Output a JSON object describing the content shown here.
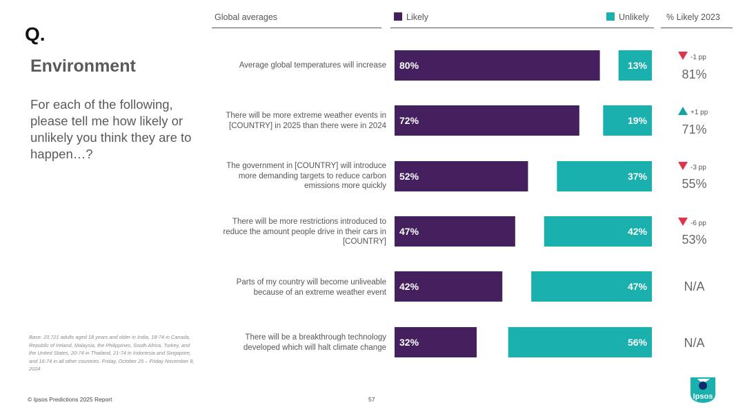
{
  "page": {
    "q_mark": "Q.",
    "title": "Environment",
    "question": "For each of the following, please tell me how likely or unlikely you think they are to happen…?",
    "base_note": "Base: 23,721 adults aged 18 years and older in India, 18-74 in Canada, Republic of Ireland, Malaysia, the Philippines, South Africa, Turkey, and the United States, 20-74 in Thailand, 21-74 in Indonesia and Singapore, and 16-74 in all other countries. Friday, October 25 – Friday November 8, 2024",
    "footer": "© Ipsos Predictions 2025 Report",
    "page_number": "57",
    "logo_text": "Ipsos"
  },
  "headers": {
    "global_averages": "Global averages",
    "likely": "Likely",
    "unlikely": "Unlikely",
    "pct_likely_2023": "% Likely 2023"
  },
  "colors": {
    "likely": "#45205f",
    "unlikely": "#19b0ad",
    "down": "#e0344a",
    "up": "#11a4a6"
  },
  "chart_data": {
    "type": "bar",
    "orientation": "horizontal-diverging",
    "title": "Global averages",
    "categories": [
      "Average global temperatures will increase",
      "There will be more extreme weather events in [COUNTRY] in 2025 than there were in 2024",
      "The government in [COUNTRY] will introduce more demanding targets to reduce carbon emissions more quickly",
      "There will be more restrictions introduced to reduce the amount people drive in their cars in [COUNTRY]",
      "Parts of my country will become unliveable because of an extreme weather event",
      "There will be a breakthrough technology developed which will halt climate change"
    ],
    "series": [
      {
        "name": "Likely",
        "values": [
          80,
          72,
          52,
          47,
          42,
          32
        ],
        "labels": [
          "80%",
          "72%",
          "52%",
          "47%",
          "42%",
          "32%"
        ]
      },
      {
        "name": "Unlikely",
        "values": [
          13,
          19,
          37,
          42,
          47,
          56
        ],
        "labels": [
          "13%",
          "19%",
          "37%",
          "42%",
          "47%",
          "56%"
        ]
      }
    ],
    "change_vs_2023": [
      {
        "direction": "down",
        "text": "-1 pp"
      },
      {
        "direction": "up",
        "text": "+1 pp"
      },
      {
        "direction": "down",
        "text": "-3 pp"
      },
      {
        "direction": "down",
        "text": "-6 pp"
      },
      null,
      null
    ],
    "likely_2023": [
      "81%",
      "71%",
      "55%",
      "53%",
      "N/A",
      "N/A"
    ]
  }
}
